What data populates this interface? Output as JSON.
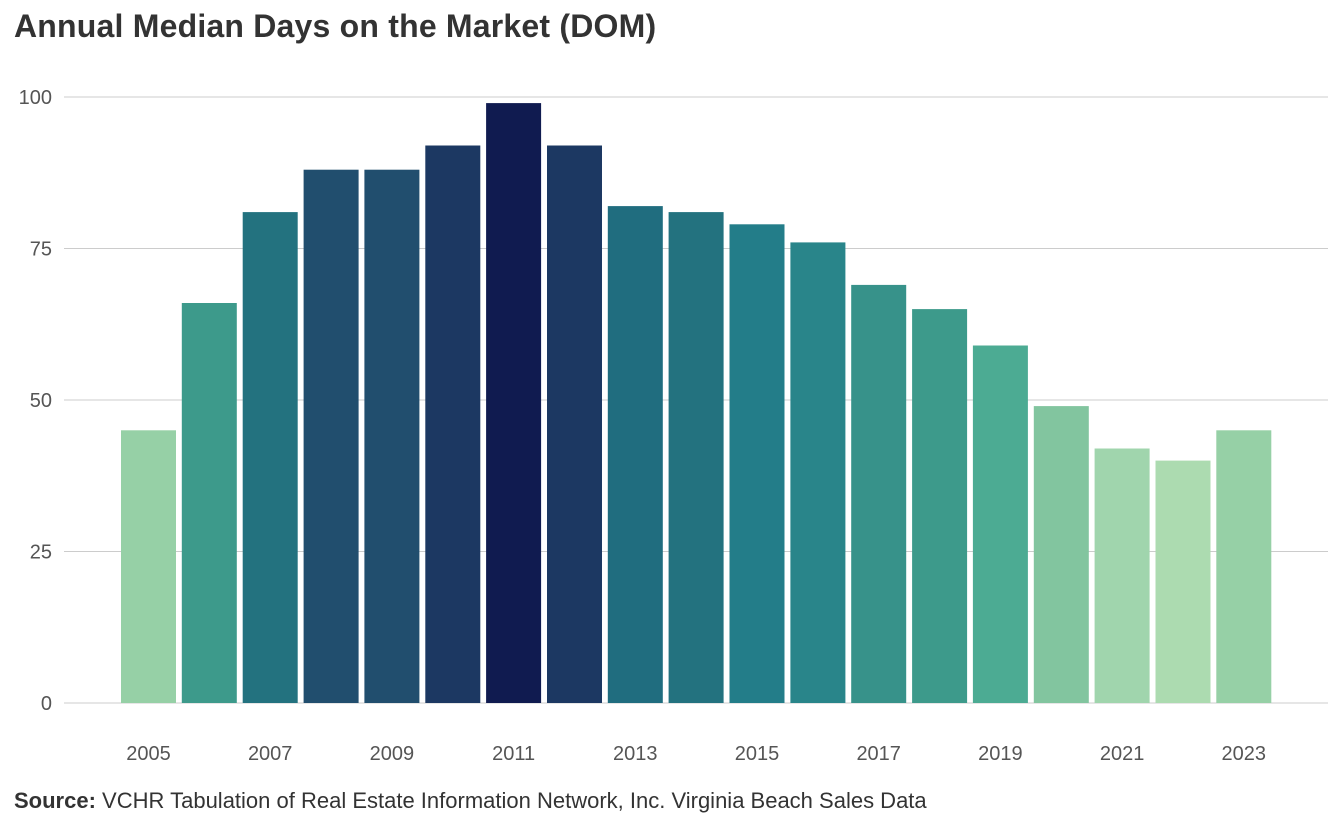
{
  "title": "Annual Median Days on the Market (DOM)",
  "source": {
    "label": "Source:",
    "text": "VCHR Tabulation of Real Estate Information Network, Inc. Virginia Beach Sales Data"
  },
  "chart_data": {
    "type": "bar",
    "title": "Annual Median Days on the Market (DOM)",
    "xlabel": "",
    "ylabel": "",
    "ylim": [
      0,
      100
    ],
    "yticks": [
      0,
      25,
      50,
      75,
      100
    ],
    "grid": true,
    "legend": "none",
    "categories": [
      "2005",
      "2006",
      "2007",
      "2008",
      "2009",
      "2010",
      "2011",
      "2012",
      "2013",
      "2014",
      "2015",
      "2016",
      "2017",
      "2018",
      "2019",
      "2020",
      "2021",
      "2022",
      "2023"
    ],
    "xtick_labels": [
      "2005",
      "",
      "2007",
      "",
      "2009",
      "",
      "2011",
      "",
      "2013",
      "",
      "2015",
      "",
      "2017",
      "",
      "2019",
      "",
      "2021",
      "",
      "2023"
    ],
    "values": [
      45,
      66,
      81,
      88,
      88,
      92,
      99,
      92,
      82,
      81,
      79,
      76,
      69,
      65,
      59,
      49,
      42,
      40,
      45
    ],
    "colors": [
      "#96d0a6",
      "#3d9a8b",
      "#23727f",
      "#214e6e",
      "#214e6e",
      "#1c3862",
      "#101b50",
      "#1c3862",
      "#206d7f",
      "#23727f",
      "#237d89",
      "#29858a",
      "#37928a",
      "#3d9a8b",
      "#4cab93",
      "#82c59f",
      "#a0d5ad",
      "#acdbb0",
      "#96d0a6"
    ]
  }
}
